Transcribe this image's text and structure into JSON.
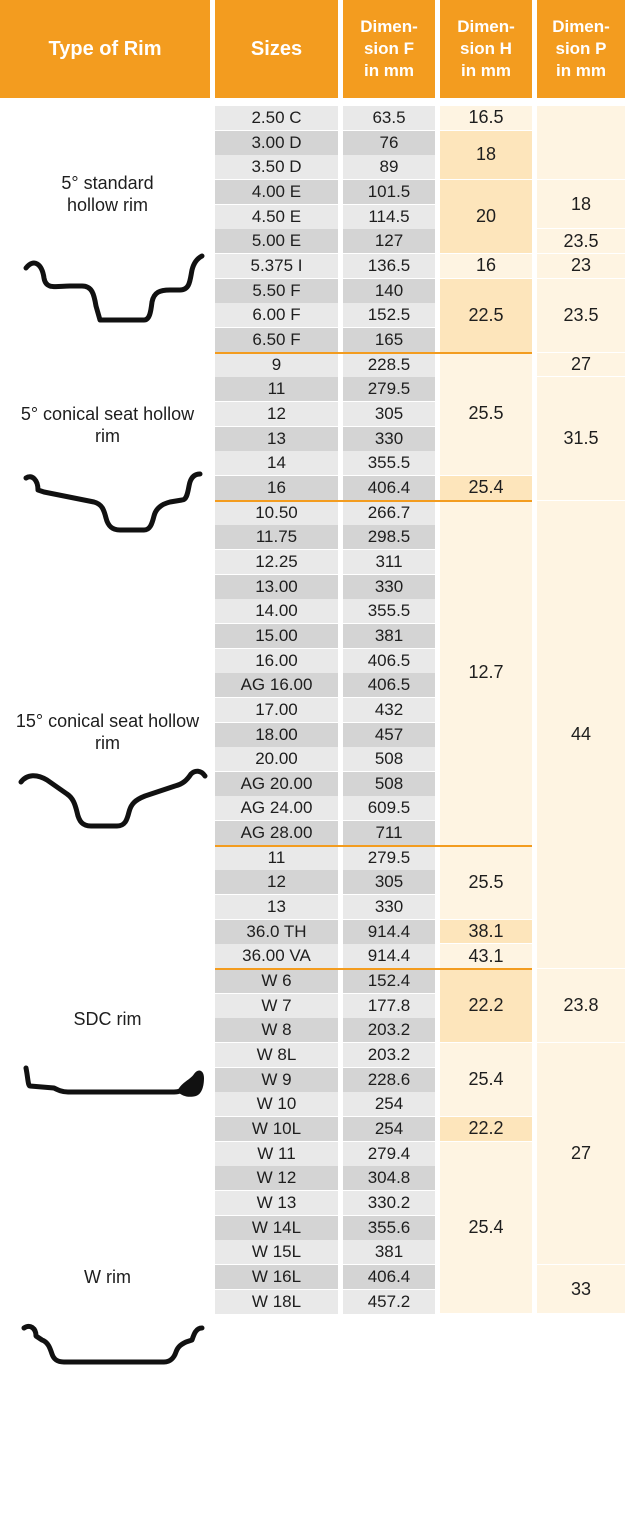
{
  "headers": {
    "type": "Type of Rim",
    "sizes": "Sizes",
    "dim_f": "Dimen-\nsion F\nin mm",
    "dim_h": "Dimen-\nsion H\nin mm",
    "dim_p": "Dimen-\nsion P\nin mm"
  },
  "rim_types": [
    "5° standard\nhollow rim",
    "5° conical seat hollow\nrim",
    "15° conical seat hollow\nrim",
    "SDC rim",
    "W rim"
  ],
  "colors": {
    "accent": "#f39c1f",
    "gray_dark": "#d4d4d4",
    "gray_light": "#e9e9e9",
    "cream_dark": "#fde5bb",
    "cream_light": "#fef4e2"
  },
  "rows": [
    {
      "size": "2.50 C",
      "f": "63.5"
    },
    {
      "size": "3.00 D",
      "f": "76"
    },
    {
      "size": "3.50 D",
      "f": "89"
    },
    {
      "size": "4.00 E",
      "f": "101.5"
    },
    {
      "size": "4.50 E",
      "f": "114.5"
    },
    {
      "size": "5.00 E",
      "f": "127"
    },
    {
      "size": "5.375 I",
      "f": "136.5"
    },
    {
      "size": "5.50 F",
      "f": "140"
    },
    {
      "size": "6.00 F",
      "f": "152.5"
    },
    {
      "size": "6.50 F",
      "f": "165"
    },
    {
      "size": "9",
      "f": "228.5"
    },
    {
      "size": "11",
      "f": "279.5"
    },
    {
      "size": "12",
      "f": "305"
    },
    {
      "size": "13",
      "f": "330"
    },
    {
      "size": "14",
      "f": "355.5"
    },
    {
      "size": "16",
      "f": "406.4"
    },
    {
      "size": "10.50",
      "f": "266.7"
    },
    {
      "size": "11.75",
      "f": "298.5"
    },
    {
      "size": "12.25",
      "f": "311"
    },
    {
      "size": "13.00",
      "f": "330"
    },
    {
      "size": "14.00",
      "f": "355.5"
    },
    {
      "size": "15.00",
      "f": "381"
    },
    {
      "size": "16.00",
      "f": "406.5"
    },
    {
      "size": "AG 16.00",
      "f": "406.5"
    },
    {
      "size": "17.00",
      "f": "432"
    },
    {
      "size": "18.00",
      "f": "457"
    },
    {
      "size": "20.00",
      "f": "508"
    },
    {
      "size": "AG 20.00",
      "f": "508"
    },
    {
      "size": "AG 24.00",
      "f": "609.5"
    },
    {
      "size": "AG 28.00",
      "f": "711"
    },
    {
      "size": "11",
      "f": "279.5"
    },
    {
      "size": "12",
      "f": "305"
    },
    {
      "size": "13",
      "f": "330"
    },
    {
      "size": "36.0 TH",
      "f": "914.4"
    },
    {
      "size": "36.00 VA",
      "f": "914.4"
    },
    {
      "size": "W 6",
      "f": "152.4"
    },
    {
      "size": "W 7",
      "f": "177.8"
    },
    {
      "size": "W 8",
      "f": "203.2"
    },
    {
      "size": "W 8L",
      "f": "203.2"
    },
    {
      "size": "W 9",
      "f": "228.6"
    },
    {
      "size": "W 10",
      "f": "254"
    },
    {
      "size": "W 10L",
      "f": "254"
    },
    {
      "size": "W 11",
      "f": "279.4"
    },
    {
      "size": "W 12",
      "f": "304.8"
    },
    {
      "size": "W 13",
      "f": "330.2"
    },
    {
      "size": "W 14L",
      "f": "355.6"
    },
    {
      "size": "W 15L",
      "f": "381"
    },
    {
      "size": "W 16L",
      "f": "406.4"
    },
    {
      "size": "W 18L",
      "f": "457.2"
    }
  ],
  "h_groups": [
    {
      "start": 0,
      "end": 0,
      "value": "16.5",
      "shade": "light"
    },
    {
      "start": 1,
      "end": 2,
      "value": "18",
      "shade": "dark"
    },
    {
      "start": 3,
      "end": 5,
      "value": "20",
      "shade": "dark"
    },
    {
      "start": 6,
      "end": 6,
      "value": "16",
      "shade": "light"
    },
    {
      "start": 7,
      "end": 9,
      "value": "22.5",
      "shade": "dark"
    },
    {
      "start": 10,
      "end": 14,
      "value": "25.5",
      "shade": "light"
    },
    {
      "start": 15,
      "end": 15,
      "value": "25.4",
      "shade": "dark"
    },
    {
      "start": 16,
      "end": 29,
      "value": "12.7",
      "shade": "light"
    },
    {
      "start": 30,
      "end": 32,
      "value": "25.5",
      "shade": "light"
    },
    {
      "start": 33,
      "end": 33,
      "value": "38.1",
      "shade": "dark"
    },
    {
      "start": 34,
      "end": 34,
      "value": "43.1",
      "shade": "light"
    },
    {
      "start": 35,
      "end": 37,
      "value": "22.2",
      "shade": "dark"
    },
    {
      "start": 38,
      "end": 40,
      "value": "25.4",
      "shade": "light"
    },
    {
      "start": 41,
      "end": 41,
      "value": "22.2",
      "shade": "dark"
    },
    {
      "start": 42,
      "end": 48,
      "value": "25.4",
      "shade": "light"
    }
  ],
  "p_groups": [
    {
      "start": 0,
      "end": 2,
      "value": "",
      "shade": "light"
    },
    {
      "start": 3,
      "end": 4,
      "value": "18",
      "shade": "light"
    },
    {
      "start": 5,
      "end": 5,
      "value": "23.5",
      "shade": "light"
    },
    {
      "start": 6,
      "end": 6,
      "value": "23",
      "shade": "light"
    },
    {
      "start": 7,
      "end": 9,
      "value": "23.5",
      "shade": "light"
    },
    {
      "start": 10,
      "end": 10,
      "value": "27",
      "shade": "light"
    },
    {
      "start": 11,
      "end": 15,
      "value": "31.5",
      "shade": "light"
    },
    {
      "start": 16,
      "end": 34,
      "value": "44",
      "shade": "light"
    },
    {
      "start": 35,
      "end": 37,
      "value": "23.8",
      "shade": "light"
    },
    {
      "start": 38,
      "end": 46,
      "value": "27",
      "shade": "light"
    },
    {
      "start": 47,
      "end": 48,
      "value": "33",
      "shade": "light"
    }
  ],
  "group_ends": [
    9,
    15,
    29,
    34
  ]
}
